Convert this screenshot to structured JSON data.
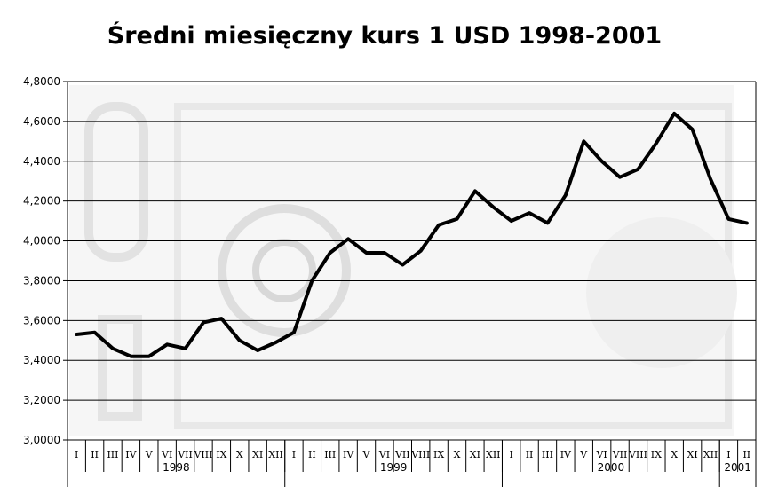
{
  "chart_data": {
    "type": "line",
    "title": "Średni miesięczny kurs 1 USD 1998-2001",
    "xlabel": "",
    "ylabel": "",
    "ylim": [
      3.0,
      4.8
    ],
    "yticks": [
      "3,0000",
      "3,2000",
      "3,4000",
      "3,6000",
      "3,8000",
      "4,0000",
      "4,2000",
      "4,4000",
      "4,6000",
      "4,8000"
    ],
    "grid": true,
    "month_labels": [
      "I",
      "II",
      "III",
      "IV",
      "V",
      "VI",
      "VII",
      "VIII",
      "IX",
      "X",
      "XI",
      "XII",
      "I",
      "II",
      "III",
      "IV",
      "V",
      "VI",
      "VII",
      "VIII",
      "IX",
      "X",
      "XI",
      "XII",
      "I",
      "II",
      "III",
      "IV",
      "V",
      "VI",
      "VII",
      "VIII",
      "IX",
      "X",
      "XI",
      "XII",
      "I",
      "II"
    ],
    "years": [
      {
        "label": "1998",
        "months": 12
      },
      {
        "label": "1999",
        "months": 12
      },
      {
        "label": "2000",
        "months": 12
      },
      {
        "label": "2001",
        "months": 2
      }
    ],
    "series": [
      {
        "values": [
          3.53,
          3.54,
          3.46,
          3.42,
          3.42,
          3.48,
          3.46,
          3.59,
          3.61,
          3.5,
          3.45,
          3.49,
          3.54,
          3.8,
          3.94,
          4.01,
          3.94,
          3.94,
          3.88,
          3.95,
          4.08,
          4.11,
          4.25,
          4.17,
          4.1,
          4.14,
          4.09,
          4.23,
          4.5,
          4.4,
          4.32,
          4.36,
          4.49,
          4.64,
          4.56,
          4.31,
          4.11,
          4.09
        ]
      }
    ],
    "colors": {
      "line": "#000000",
      "grid": "#000000",
      "watermark": "#e8e8e8"
    }
  }
}
